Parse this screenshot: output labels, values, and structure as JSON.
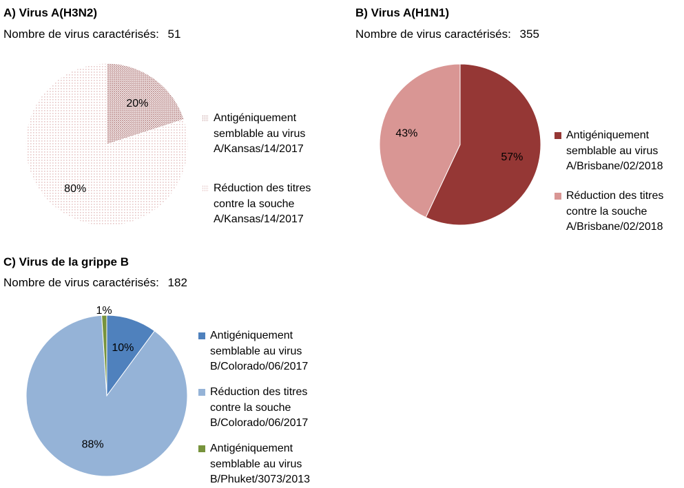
{
  "chart_data": [
    {
      "type": "pie",
      "title": "A) Virus A(H3N2)",
      "count_label": "Nombre de virus caractérisés:",
      "count_value": "51",
      "slices": [
        {
          "name": "Antigéniquement\nsemblable au virus\nA/Kansas/14/2017",
          "value": 20,
          "label": "20%",
          "color": "#c9a3a3",
          "pattern": "dense"
        },
        {
          "name": "Réduction des titres\ncontre la souche\nA/Kansas/14/2017",
          "value": 80,
          "label": "80%",
          "color": "#e6c6c6",
          "pattern": "sparse"
        }
      ]
    },
    {
      "type": "pie",
      "title": "B) Virus A(H1N1)",
      "count_label": "Nombre de virus caractérisés:",
      "count_value": "355",
      "slices": [
        {
          "name": "Antigéniquement\nsemblable au virus\nA/Brisbane/02/2018",
          "value": 57,
          "label": "57%",
          "color": "#953735"
        },
        {
          "name": "Réduction des titres\ncontre la souche\nA/Brisbane/02/2018",
          "value": 43,
          "label": "43%",
          "color": "#d99694"
        }
      ]
    },
    {
      "type": "pie",
      "title": "C) Virus de la grippe B",
      "count_label": "Nombre de virus caractérisés:",
      "count_value": "182",
      "slices": [
        {
          "name": "Antigéniquement\nsemblable au virus\nB/Colorado/06/2017",
          "value": 10,
          "label": "10%",
          "color": "#4f81bd"
        },
        {
          "name": "Réduction des titres\ncontre la souche\nB/Colorado/06/2017",
          "value": 88,
          "label": "88%",
          "color": "#95b3d7"
        },
        {
          "name": "Antigéniquement\nsemblable au virus\nB/Phuket/3073/2013",
          "value": 1,
          "label": "1%",
          "color": "#77933c"
        }
      ]
    }
  ]
}
